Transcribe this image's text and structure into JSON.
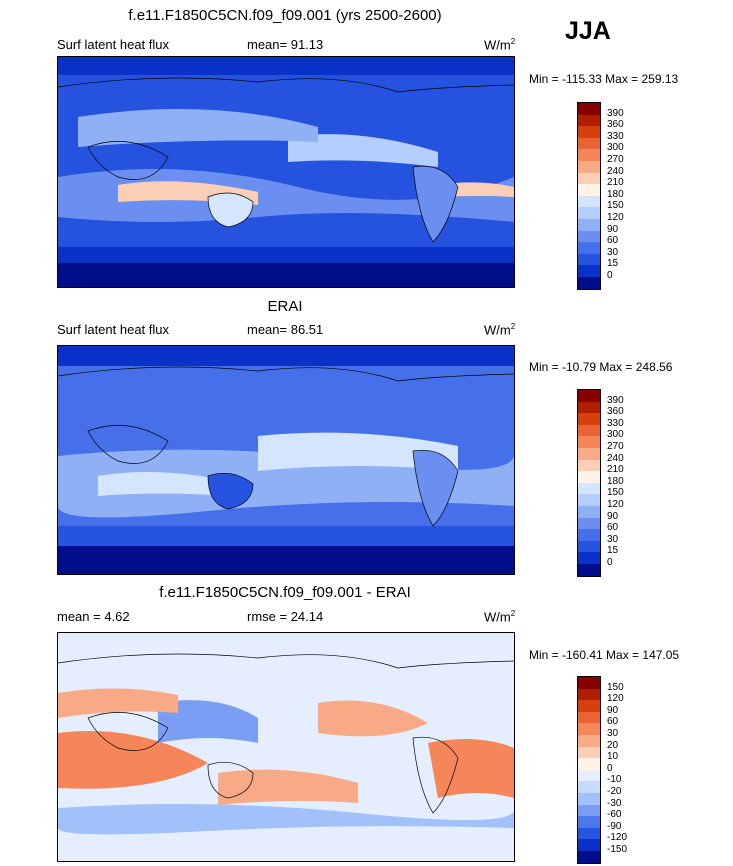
{
  "season": "JJA",
  "panels": [
    {
      "title": "f.e11.F1850C5CN.f09_f09.001 (yrs 2500-2600)",
      "variable": "Surf latent heat flux",
      "stat": "mean=  91.13",
      "units": "W/m",
      "units_exp": "2",
      "minmax": "Min = -115.33 Max = 259.13",
      "colorbar": {
        "labels": [
          "390",
          "360",
          "330",
          "300",
          "270",
          "240",
          "210",
          "180",
          "150",
          "120",
          "90",
          "60",
          "30",
          "15",
          "0"
        ],
        "colors": [
          "#870000",
          "#b01e00",
          "#d73f0c",
          "#ea6433",
          "#f4865a",
          "#f8a986",
          "#fbcfb5",
          "#fff3e8",
          "#d3e5ff",
          "#b3ceff",
          "#8fb0f5",
          "#6a8ff0",
          "#4570ea",
          "#2652e0",
          "#0a31c8",
          "#000e8c"
        ]
      }
    },
    {
      "title": "ERAI",
      "variable": "Surf latent heat flux",
      "stat": "mean=  86.51",
      "units": "W/m",
      "units_exp": "2",
      "minmax": "Min = -10.79 Max = 248.56",
      "colorbar": {
        "labels": [
          "390",
          "360",
          "330",
          "300",
          "270",
          "240",
          "210",
          "180",
          "150",
          "120",
          "90",
          "60",
          "30",
          "15",
          "0"
        ],
        "colors": [
          "#870000",
          "#b01e00",
          "#d73f0c",
          "#ea6433",
          "#f4865a",
          "#f8a986",
          "#fbcfb5",
          "#fff3e8",
          "#d3e5ff",
          "#b3ceff",
          "#8fb0f5",
          "#6a8ff0",
          "#4570ea",
          "#2652e0",
          "#0a31c8",
          "#000e8c"
        ]
      }
    },
    {
      "title": "f.e11.F1850C5CN.f09_f09.001 - ERAI",
      "variable": "mean =   4.62",
      "stat": "rmse =  24.14",
      "units": "W/m",
      "units_exp": "2",
      "minmax": "Min = -160.41 Max = 147.05",
      "colorbar": {
        "labels": [
          "150",
          "120",
          "90",
          "60",
          "30",
          "20",
          "10",
          "0",
          "-10",
          "-20",
          "-30",
          "-60",
          "-90",
          "-120",
          "-150"
        ],
        "colors": [
          "#870000",
          "#b01e00",
          "#d73f0c",
          "#ea6433",
          "#f4865a",
          "#f8a986",
          "#fbcfb5",
          "#fff3e8",
          "#e4eeff",
          "#c7dbff",
          "#a2c0fa",
          "#7a9ef3",
          "#4d78ec",
          "#2655e2",
          "#0a30c6",
          "#000e8c"
        ]
      }
    }
  ]
}
